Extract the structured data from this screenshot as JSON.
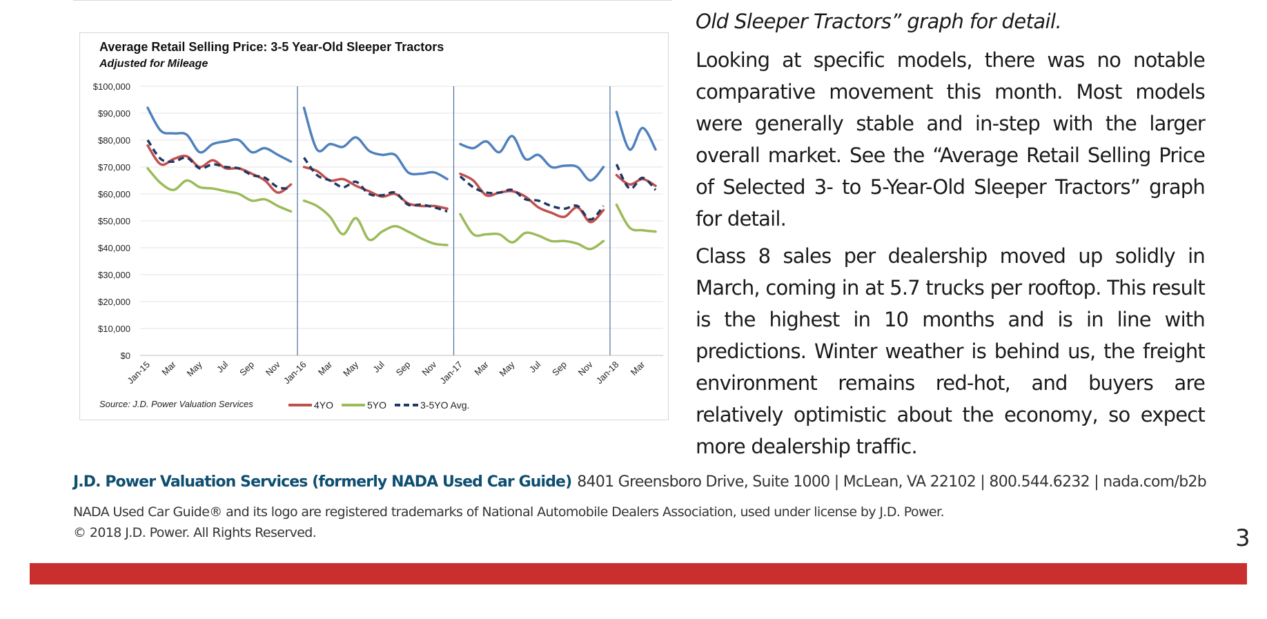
{
  "chart_data": {
    "type": "line",
    "title": "Average Retail Selling Price: 3-5 Year-Old Sleeper Tractors",
    "subtitle": "Adjusted for Mileage",
    "source": "Source: J.D. Power Valuation Services",
    "x_tick_labels": [
      "Jan-15",
      "Mar",
      "May",
      "Jul",
      "Sep",
      "Nov",
      "Jan-16",
      "Mar",
      "May",
      "Jul",
      "Sep",
      "Nov",
      "Jan-17",
      "Mar",
      "May",
      "Jul",
      "Sep",
      "Nov",
      "Jan-18",
      "Mar"
    ],
    "y_tick_labels": [
      "$0",
      "$10,000",
      "$20,000",
      "$30,000",
      "$40,000",
      "$50,000",
      "$60,000",
      "$70,000",
      "$80,000",
      "$90,000",
      "$100,000"
    ],
    "ylim": [
      0,
      100000
    ],
    "year_dividers_after_month_index": [
      11,
      23,
      35
    ],
    "months_count": 40,
    "grid": true,
    "legend_position": "bottom",
    "series": [
      {
        "key": "3yo",
        "color": "#4f81bd",
        "dashed": false,
        "in_legend": false,
        "values": [
          92000,
          83500,
          82500,
          82000,
          75500,
          78500,
          79500,
          80000,
          75500,
          77000,
          74500,
          72000,
          92000,
          76500,
          78500,
          77500,
          81000,
          76000,
          74500,
          74500,
          68000,
          67500,
          68000,
          65500,
          78500,
          77000,
          79500,
          75500,
          81500,
          73000,
          74500,
          70000,
          70500,
          70000,
          65000,
          70000,
          90500,
          76500,
          84500,
          76500
        ]
      },
      {
        "key": "4yo",
        "name": "4YO",
        "color": "#c0504d",
        "dashed": false,
        "in_legend": true,
        "values": [
          78000,
          71000,
          73000,
          74000,
          70000,
          72500,
          69500,
          69500,
          67500,
          65000,
          60500,
          63500,
          70000,
          68500,
          65000,
          65500,
          63000,
          61000,
          59000,
          60000,
          56500,
          55500,
          55500,
          54500,
          67500,
          65000,
          59500,
          60500,
          61000,
          59000,
          55000,
          53000,
          51500,
          55000,
          49500,
          54000,
          67000,
          63500,
          65500,
          63000
        ]
      },
      {
        "key": "5yo",
        "name": "5YO",
        "color": "#9bbb59",
        "dashed": false,
        "in_legend": true,
        "values": [
          69500,
          64000,
          61500,
          65000,
          62500,
          62000,
          61000,
          60000,
          57500,
          58000,
          55500,
          53500,
          57500,
          55500,
          51500,
          45000,
          51000,
          43000,
          46000,
          48000,
          46000,
          43500,
          41500,
          41000,
          52500,
          45000,
          45000,
          45000,
          42000,
          45500,
          44500,
          42500,
          42500,
          41500,
          39500,
          42500,
          56000,
          47500,
          46500,
          46000
        ]
      },
      {
        "key": "avg",
        "name": "3-5YO Avg.",
        "color": "#1f3864",
        "dashed": true,
        "in_legend": true,
        "values": [
          80000,
          73000,
          72000,
          73500,
          69500,
          71000,
          70000,
          69500,
          67000,
          66000,
          62500,
          62000,
          73500,
          67000,
          65000,
          62500,
          64500,
          60000,
          59500,
          60500,
          56000,
          56000,
          55000,
          53500,
          66500,
          62500,
          60500,
          60500,
          61500,
          58000,
          57500,
          55500,
          54500,
          55500,
          50500,
          55500,
          71000,
          62000,
          66000,
          61500
        ]
      }
    ]
  },
  "text": {
    "intro_line": "Old Sleeper Tractors” graph for detail.",
    "para1": "Looking at specific models, there was no notable comparative movement this month. Most models were generally stable and in-step with the larger overall market. See the “Average Retail Selling Price of Selected 3- to 5-Year-Old Sleeper Tractors” graph for detail.",
    "para2": "Class 8 sales per dealership moved up solidly in March, coming in at 5.7 trucks per rooftop. This result is the highest in 10 months and is in line with predictions. Winter weather is behind us, the freight environment remains red-hot, and buyers are relatively optimistic about the economy, so expect more dealership traffic."
  },
  "footer": {
    "brand": "J.D. Power Valuation Services (formerly NADA Used Car Guide)",
    "contact": "8401 Greensboro Drive, Suite 1000 | McLean, VA 22102 | 800.544.6232 | nada.com/b2b",
    "trademark": "NADA Used Car Guide® and its logo are registered trademarks of National Automobile Dealers Association, used under license by J.D. Power.",
    "copyright": "© 2018 J.D. Power. All Rights Reserved.",
    "page_number": "3"
  },
  "colors": {
    "brand_blue": "#0e4e70",
    "bottom_bar": "#c92f2f"
  }
}
